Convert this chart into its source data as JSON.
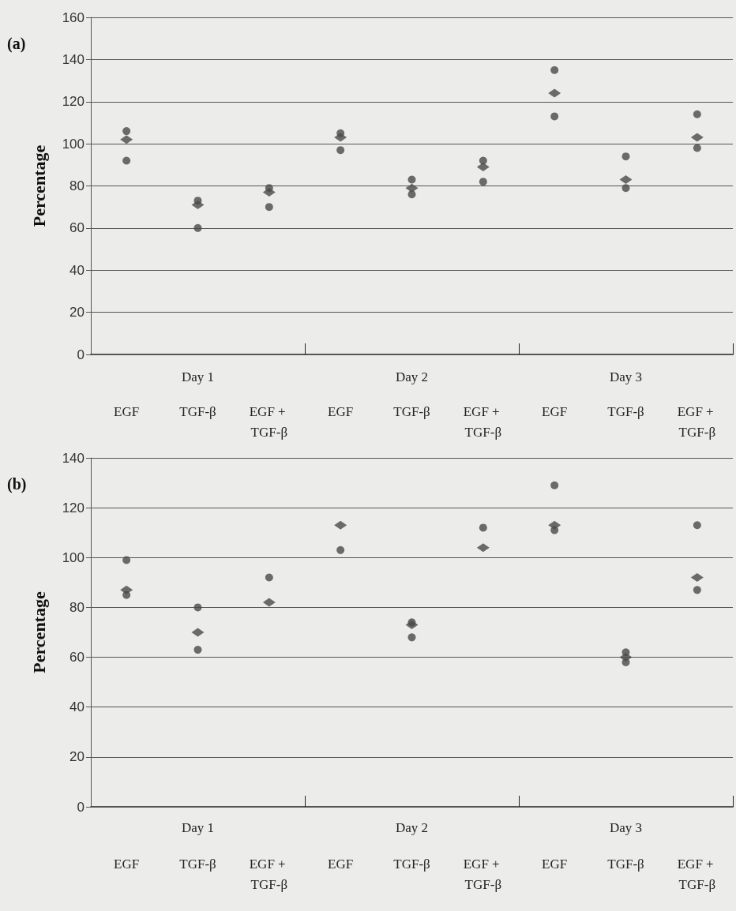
{
  "chart_data": [
    {
      "type": "scatter",
      "title": "(a)",
      "ylabel": "Percentage",
      "categories": [
        "EGF",
        "TGF-β",
        "EGF + TGF-β",
        "EGF",
        "TGF-β",
        "EGF + TGF-β",
        "EGF",
        "TGF-β",
        "EGF + TGF-β"
      ],
      "annotations": [
        "Day 1",
        "Day 2",
        "Day 3"
      ],
      "ylim": [
        0,
        160
      ],
      "yticks": [
        0,
        20,
        40,
        60,
        80,
        100,
        120,
        140,
        160
      ],
      "grid": "y",
      "series": [
        {
          "color": "#4a4a4a",
          "marker": "circle",
          "values": [
            106,
            73,
            79,
            105,
            83,
            92,
            135,
            94,
            114
          ]
        },
        {
          "color": "#4a4a4a",
          "marker": "circle",
          "values": [
            92,
            60,
            70,
            97,
            76,
            82,
            113,
            79,
            98
          ]
        },
        {
          "color": "#4a4a4a",
          "marker": "diamond",
          "values": [
            102,
            71,
            77,
            103,
            79,
            89,
            124,
            83,
            103
          ]
        }
      ]
    },
    {
      "type": "scatter",
      "title": "(b)",
      "ylabel": "Percentage",
      "categories": [
        "EGF",
        "TGF-β",
        "EGF + TGF-β",
        "EGF",
        "TGF-β",
        "EGF + TGF-β",
        "EGF",
        "TGF-β",
        "EGF + TGF-β"
      ],
      "annotations": [
        "Day 1",
        "Day 2",
        "Day 3"
      ],
      "ylim": [
        0,
        140
      ],
      "yticks": [
        0,
        20,
        40,
        60,
        80,
        100,
        120,
        140
      ],
      "grid": "y",
      "series": [
        {
          "color": "#4a4a4a",
          "marker": "circle",
          "values": [
            99,
            80,
            92,
            null,
            74,
            112,
            129,
            62,
            113
          ]
        },
        {
          "color": "#4a4a4a",
          "marker": "circle",
          "values": [
            85,
            63,
            null,
            103,
            68,
            null,
            111,
            58,
            87
          ]
        },
        {
          "color": "#4a4a4a",
          "marker": "diamond",
          "values": [
            87,
            70,
            82,
            113,
            73,
            104,
            113,
            60,
            92
          ]
        }
      ]
    }
  ]
}
